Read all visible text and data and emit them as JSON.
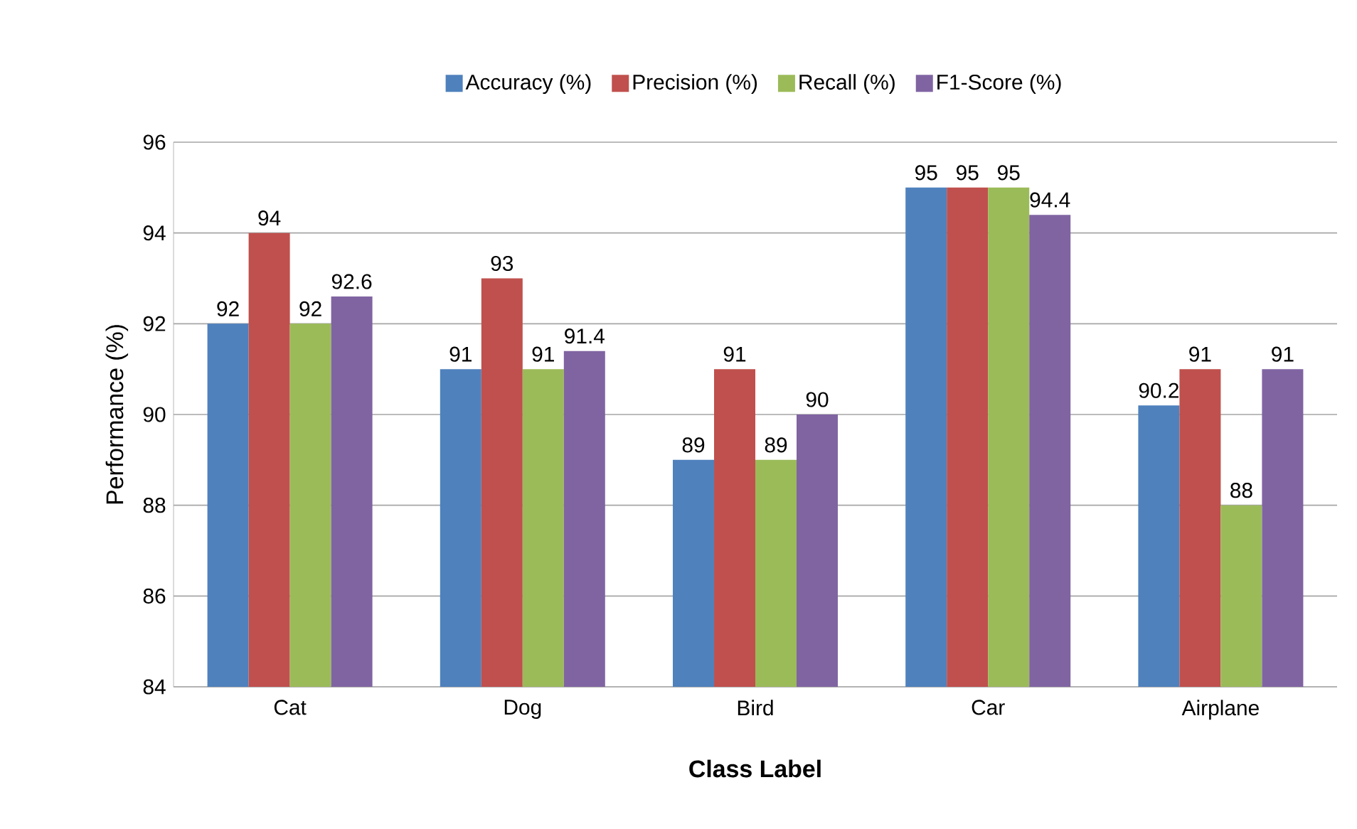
{
  "chart_data": {
    "type": "bar",
    "xlabel": "Class Label",
    "ylabel": "Performance (%)",
    "categories": [
      "Cat",
      "Dog",
      "Bird",
      "Car",
      "Airplane"
    ],
    "series": [
      {
        "name": "Accuracy (%)",
        "color": "#4f81bd",
        "values": [
          92,
          91,
          89,
          95,
          90.2
        ]
      },
      {
        "name": "Precision (%)",
        "color": "#c0504d",
        "values": [
          94,
          93,
          91,
          95,
          91
        ]
      },
      {
        "name": "Recall (%)",
        "color": "#9bbb59",
        "values": [
          92,
          91,
          89,
          95,
          88
        ]
      },
      {
        "name": "F1-Score (%)",
        "color": "#8064a2",
        "values": [
          92.6,
          91.4,
          90,
          94.4,
          91
        ]
      }
    ],
    "ylim": [
      84,
      96
    ],
    "yticks": [
      84,
      86,
      88,
      90,
      92,
      94,
      96
    ],
    "grid": "y",
    "legend": "top",
    "data_labels": true
  }
}
